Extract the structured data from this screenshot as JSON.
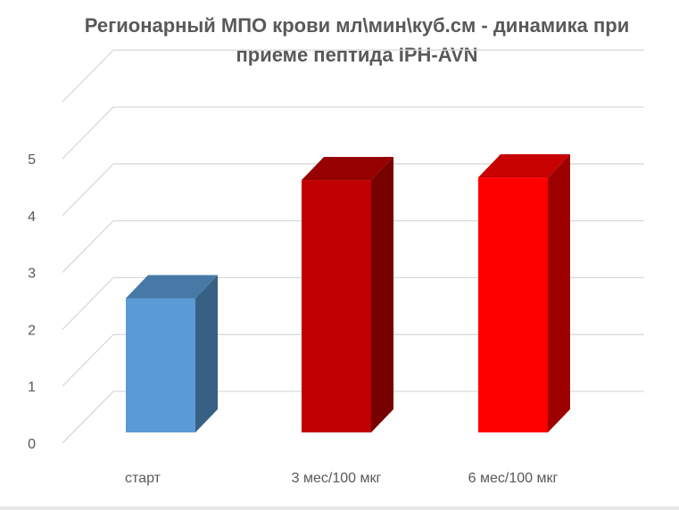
{
  "chart_data": {
    "type": "bar",
    "style": "3d-column",
    "title_lines": [
      "Регионарный МПО крови мл\\мин\\куб.см - динамика при",
      "приеме пептида IPH-AVN"
    ],
    "categories": [
      "старт",
      "3 мес/100 мкг",
      "6 мес/100 мкг"
    ],
    "values": [
      2.5,
      4.7,
      4.75
    ],
    "colors": [
      "#5b9bd5",
      "#c00000",
      "#ff0000"
    ],
    "ylim": [
      0,
      5
    ],
    "yticks": [
      "0",
      "1",
      "2",
      "3",
      "4",
      "5"
    ],
    "xlabel": "",
    "ylabel": "",
    "grid": true,
    "legend": "none"
  }
}
